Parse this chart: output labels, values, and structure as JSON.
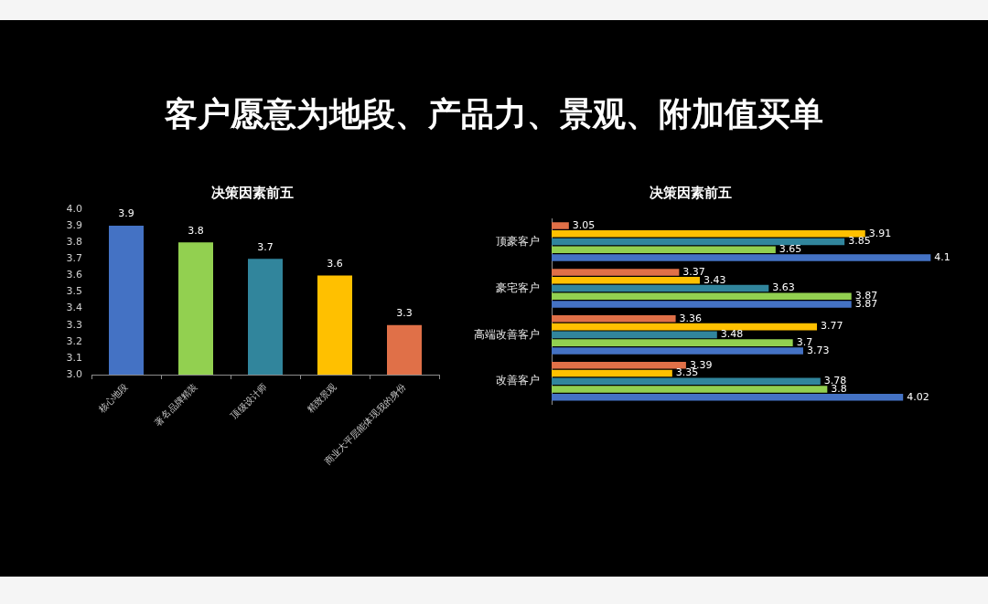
{
  "chart_data": [
    {
      "type": "other",
      "title": "客户愿意为地段、产品力、景观、附加值买单"
    },
    {
      "type": "bar",
      "title": "决策因素前五",
      "categories": [
        "核心地段",
        "著名品牌精装",
        "顶级设计师",
        "精致景观",
        "商业大平层能体现我的身份"
      ],
      "values": [
        3.9,
        3.8,
        3.7,
        3.6,
        3.3
      ],
      "colors": [
        "#4472c4",
        "#92d050",
        "#31859c",
        "#ffc000",
        "#e07048"
      ],
      "ylim": [
        3,
        4
      ],
      "yticks": [
        {
          "value": 3,
          "label": "3.0"
        },
        3.1,
        3.2,
        3.3,
        3.4,
        3.5,
        3.6,
        3.7,
        3.8,
        3.9,
        {
          "value": 4,
          "label": "4.0"
        }
      ],
      "data_labels": true
    },
    {
      "type": "bar",
      "orientation": "horizontal",
      "title": "决策因素前五",
      "categories": [
        "顶豪客户",
        "豪宅客户",
        "高端改善客户",
        "改善客户"
      ],
      "series": [
        {
          "color": "#e07048",
          "values": [
            3.05,
            3.37,
            3.36,
            3.39
          ]
        },
        {
          "color": "#ffc000",
          "values": [
            3.91,
            3.43,
            3.77,
            3.35
          ]
        },
        {
          "color": "#31859c",
          "values": [
            3.85,
            3.63,
            3.48,
            3.78
          ]
        },
        {
          "color": "#92d050",
          "values": [
            3.65,
            3.87,
            3.7,
            3.8
          ]
        },
        {
          "color": "#4472c4",
          "values": [
            4.1,
            3.87,
            3.73,
            4.02
          ]
        }
      ],
      "tick_labels": "y",
      "data_labels": true
    }
  ]
}
